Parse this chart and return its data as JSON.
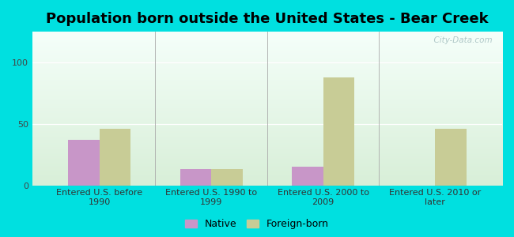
{
  "title": "Population born outside the United States - Bear Creek",
  "categories": [
    "Entered U.S. before\n1990",
    "Entered U.S. 1990 to\n1999",
    "Entered U.S. 2000 to\n2009",
    "Entered U.S. 2010 or\nlater"
  ],
  "native_values": [
    37,
    13,
    15,
    0
  ],
  "foreign_values": [
    46,
    13,
    88,
    46
  ],
  "native_color": "#c896c8",
  "foreign_color": "#c8cc96",
  "background_outer": "#00e0e0",
  "background_inner_top": "#f5fffa",
  "background_inner_bottom": "#d8efd8",
  "ylim": [
    0,
    125
  ],
  "yticks": [
    0,
    50,
    100
  ],
  "bar_width": 0.28,
  "title_fontsize": 13,
  "tick_fontsize": 8,
  "legend_fontsize": 9,
  "watermark_text": "  City-Data.com",
  "watermark_color": "#b0c8c8"
}
